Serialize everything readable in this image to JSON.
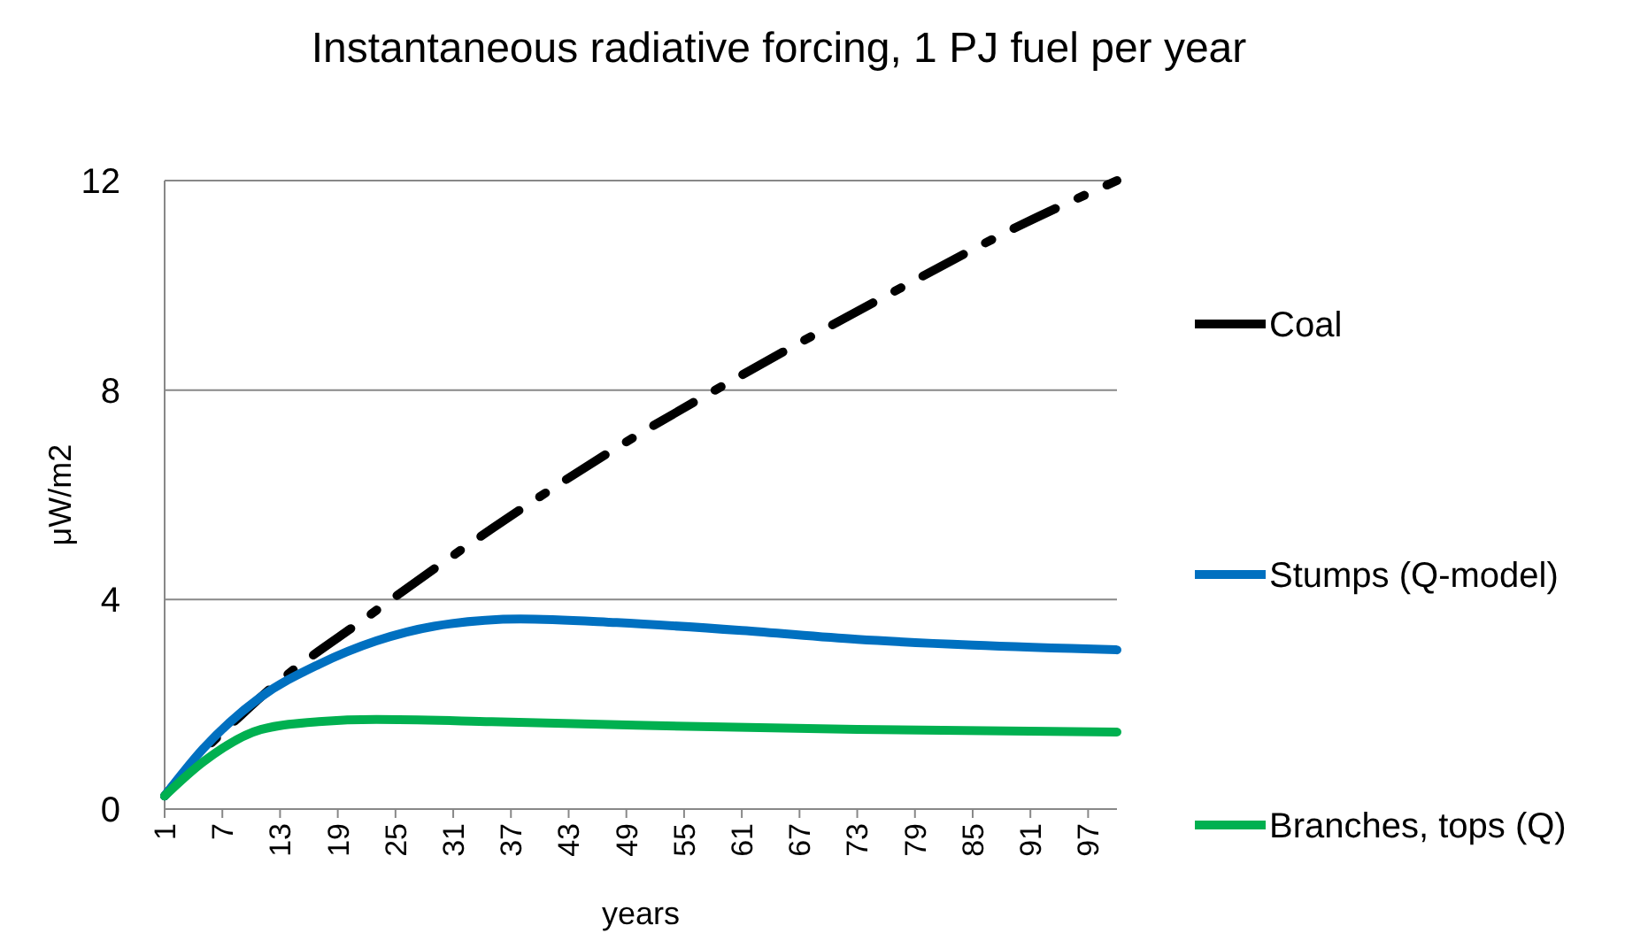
{
  "chart_data": {
    "type": "line",
    "title": "Instantaneous radiative forcing, 1 PJ fuel per year",
    "xlabel": "years",
    "ylabel": "μW/m2",
    "xlim": [
      1,
      100
    ],
    "xticks": [
      1,
      7,
      13,
      19,
      25,
      31,
      37,
      43,
      49,
      55,
      61,
      67,
      73,
      79,
      85,
      91,
      97
    ],
    "ylim": [
      0,
      12
    ],
    "yticks": [
      0,
      4,
      8,
      12
    ],
    "grid": "y",
    "legend": "right",
    "marker": "none",
    "series": [
      {
        "name": "Coal",
        "color": "#000000",
        "line_style": "dashed",
        "x": [
          1,
          5,
          9,
          12,
          22,
          35,
          48,
          62,
          76,
          90,
          100
        ],
        "values": [
          0.25,
          1.1,
          1.8,
          2.3,
          3.66,
          5.35,
          6.9,
          8.39,
          9.8,
          11.15,
          12
        ]
      },
      {
        "name": "Stumps (Q-model)",
        "color": "#0070c0",
        "line_style": "solid",
        "x": [
          1,
          5,
          11,
          17,
          23,
          29,
          38,
          48,
          61,
          73,
          85,
          100
        ],
        "values": [
          0.25,
          1.15,
          2.14,
          2.76,
          3.21,
          3.49,
          3.63,
          3.56,
          3.41,
          3.24,
          3.13,
          3.04
        ]
      },
      {
        "name": "Branches, tops (Q)",
        "color": "#00b050",
        "line_style": "solid",
        "x": [
          1,
          5,
          11,
          17,
          23,
          35,
          50,
          73,
          100
        ],
        "values": [
          0.25,
          0.9,
          1.52,
          1.67,
          1.71,
          1.67,
          1.6,
          1.52,
          1.47
        ]
      }
    ]
  }
}
